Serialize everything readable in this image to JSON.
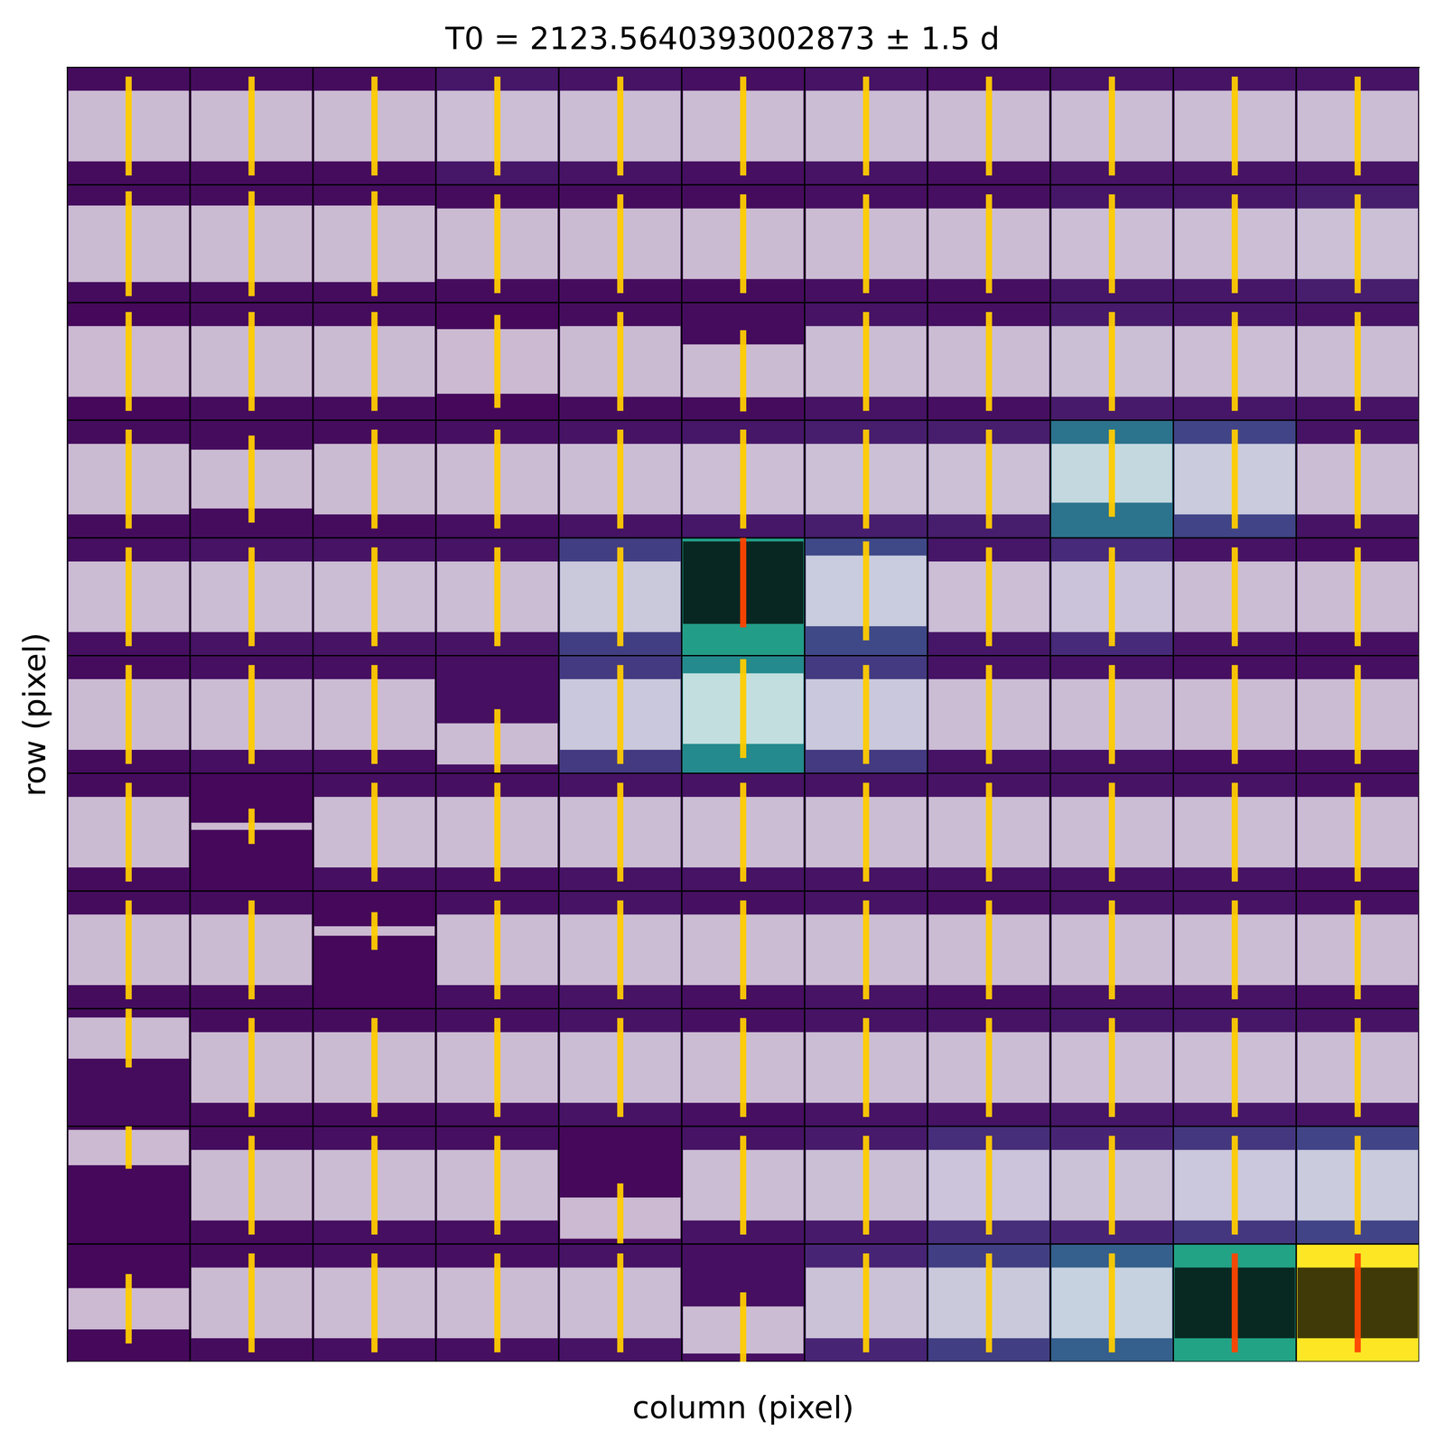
{
  "chart_data": {
    "type": "heatmap",
    "title": "T0 = 2123.5640393002873 ± 1.5 d",
    "x_label": "column (pixel)",
    "y_label": "row (pixel)",
    "tick_labels": false,
    "t0": 2123.5640393002873,
    "half_window": 1.5,
    "color_range": [
      0,
      1
    ],
    "cells": [
      [
        0.03,
        0.03,
        0.03,
        0.06,
        0.05,
        0.04,
        0.05,
        0.04,
        0.05,
        0.05,
        0.05
      ],
      [
        0.03,
        0.03,
        0.03,
        0.03,
        0.03,
        0.03,
        0.04,
        0.04,
        0.06,
        0.06,
        0.08
      ],
      [
        0.02,
        0.03,
        0.03,
        0.02,
        0.03,
        0.03,
        0.05,
        0.04,
        0.07,
        0.06,
        0.05
      ],
      [
        0.03,
        0.03,
        0.03,
        0.04,
        0.05,
        0.06,
        0.08,
        0.08,
        0.38,
        0.2,
        0.05
      ],
      [
        0.04,
        0.05,
        0.05,
        0.05,
        0.18,
        0.55,
        0.22,
        0.06,
        0.12,
        0.05,
        0.04
      ],
      [
        0.03,
        0.04,
        0.04,
        0.04,
        0.17,
        0.47,
        0.17,
        0.05,
        0.05,
        0.04,
        0.04
      ],
      [
        0.03,
        0.02,
        0.04,
        0.04,
        0.05,
        0.05,
        0.05,
        0.05,
        0.05,
        0.05,
        0.04
      ],
      [
        0.03,
        0.03,
        0.02,
        0.04,
        0.05,
        0.04,
        0.05,
        0.04,
        0.05,
        0.05,
        0.04
      ],
      [
        0.03,
        0.03,
        0.03,
        0.04,
        0.05,
        0.04,
        0.05,
        0.05,
        0.06,
        0.06,
        0.05
      ],
      [
        0.02,
        0.03,
        0.04,
        0.04,
        0.02,
        0.05,
        0.07,
        0.13,
        0.1,
        0.16,
        0.2
      ],
      [
        0.02,
        0.03,
        0.04,
        0.04,
        0.05,
        0.04,
        0.1,
        0.18,
        0.3,
        0.58,
        1.0
      ]
    ],
    "band_center": [
      [
        0.5,
        0.5,
        0.5,
        0.5,
        0.5,
        0.5,
        0.5,
        0.5,
        0.5,
        0.5,
        0.5
      ],
      [
        0.5,
        0.5,
        0.5,
        0.5,
        0.5,
        0.5,
        0.5,
        0.5,
        0.5,
        0.5,
        0.5
      ],
      [
        0.5,
        0.5,
        0.5,
        0.5,
        0.5,
        0.42,
        0.5,
        0.5,
        0.5,
        0.5,
        0.5
      ],
      [
        0.5,
        0.5,
        0.5,
        0.5,
        0.5,
        0.5,
        0.5,
        0.5,
        0.55,
        0.5,
        0.5
      ],
      [
        0.5,
        0.5,
        0.5,
        0.5,
        0.5,
        0.62,
        0.55,
        0.5,
        0.5,
        0.5,
        0.5
      ],
      [
        0.5,
        0.5,
        0.5,
        0.25,
        0.5,
        0.55,
        0.5,
        0.5,
        0.5,
        0.5,
        0.5
      ],
      [
        0.5,
        0.55,
        0.5,
        0.5,
        0.5,
        0.5,
        0.5,
        0.5,
        0.5,
        0.5,
        0.5
      ],
      [
        0.5,
        0.5,
        0.66,
        0.5,
        0.5,
        0.5,
        0.5,
        0.5,
        0.5,
        0.5,
        0.5
      ],
      [
        0.75,
        0.5,
        0.5,
        0.5,
        0.5,
        0.5,
        0.5,
        0.5,
        0.5,
        0.5,
        0.5
      ],
      [
        0.82,
        0.5,
        0.5,
        0.5,
        0.22,
        0.5,
        0.5,
        0.5,
        0.5,
        0.5,
        0.5
      ],
      [
        0.45,
        0.5,
        0.5,
        0.5,
        0.5,
        0.27,
        0.5,
        0.5,
        0.5,
        0.5,
        0.5
      ]
    ],
    "band_width": [
      [
        0.6,
        0.6,
        0.6,
        0.6,
        0.6,
        0.6,
        0.6,
        0.6,
        0.6,
        0.6,
        0.6
      ],
      [
        0.65,
        0.65,
        0.65,
        0.6,
        0.6,
        0.6,
        0.6,
        0.6,
        0.6,
        0.6,
        0.6
      ],
      [
        0.6,
        0.6,
        0.6,
        0.55,
        0.6,
        0.45,
        0.6,
        0.6,
        0.6,
        0.6,
        0.6
      ],
      [
        0.6,
        0.5,
        0.6,
        0.6,
        0.6,
        0.6,
        0.6,
        0.6,
        0.5,
        0.6,
        0.6
      ],
      [
        0.6,
        0.6,
        0.6,
        0.6,
        0.6,
        0.7,
        0.6,
        0.6,
        0.6,
        0.6,
        0.6
      ],
      [
        0.6,
        0.6,
        0.6,
        0.35,
        0.6,
        0.6,
        0.6,
        0.6,
        0.6,
        0.6,
        0.6
      ],
      [
        0.6,
        0.06,
        0.6,
        0.6,
        0.6,
        0.6,
        0.6,
        0.6,
        0.6,
        0.6,
        0.6
      ],
      [
        0.6,
        0.6,
        0.08,
        0.6,
        0.6,
        0.6,
        0.6,
        0.6,
        0.6,
        0.6,
        0.6
      ],
      [
        0.35,
        0.6,
        0.6,
        0.6,
        0.6,
        0.6,
        0.6,
        0.6,
        0.6,
        0.6,
        0.6
      ],
      [
        0.3,
        0.6,
        0.6,
        0.6,
        0.35,
        0.6,
        0.6,
        0.6,
        0.6,
        0.6,
        0.6
      ],
      [
        0.35,
        0.6,
        0.6,
        0.6,
        0.6,
        0.4,
        0.6,
        0.6,
        0.6,
        0.6,
        0.6
      ]
    ]
  }
}
